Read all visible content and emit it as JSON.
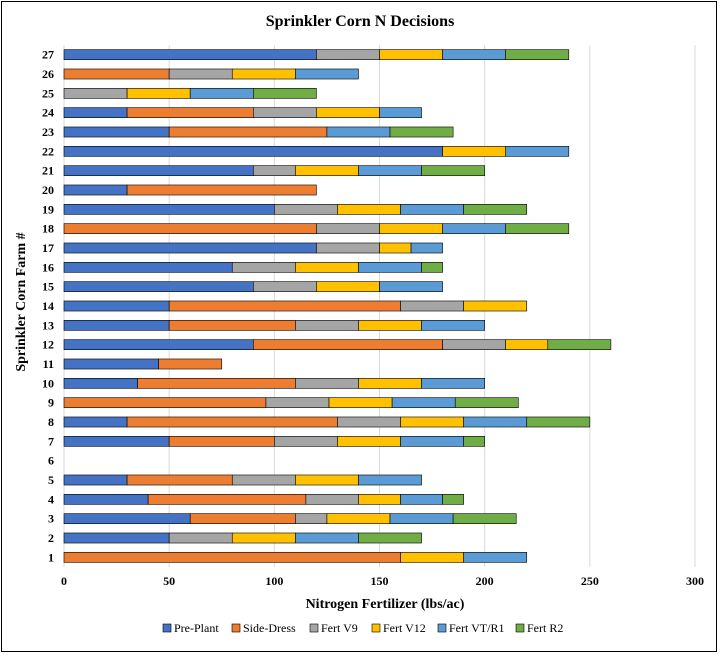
{
  "chart_data": {
    "type": "bar",
    "orientation": "horizontal",
    "stacked": true,
    "title": "Sprinkler Corn N Decisions",
    "xlabel": "Nitrogen Fertilizer (lbs/ac)",
    "ylabel": "Sprinkler Corn Farm #",
    "xlim": [
      0,
      300
    ],
    "xticks": [
      0,
      50,
      100,
      150,
      200,
      250,
      300
    ],
    "grid": "vertical",
    "legend_position": "bottom",
    "categories": [
      "1",
      "2",
      "3",
      "4",
      "5",
      "6",
      "7",
      "8",
      "9",
      "10",
      "11",
      "12",
      "13",
      "14",
      "15",
      "16",
      "17",
      "18",
      "19",
      "20",
      "21",
      "22",
      "23",
      "24",
      "25",
      "26",
      "27"
    ],
    "series": [
      {
        "name": "Pre-Plant",
        "color": "#4472C4",
        "values": [
          0,
          50,
          60,
          40,
          30,
          0,
          50,
          30,
          0,
          35,
          45,
          90,
          50,
          50,
          90,
          80,
          120,
          0,
          100,
          30,
          90,
          180,
          50,
          30,
          0,
          0,
          120
        ]
      },
      {
        "name": "Side-Dress",
        "color": "#ED7D31",
        "values": [
          160,
          0,
          50,
          75,
          50,
          0,
          50,
          100,
          96,
          75,
          30,
          90,
          60,
          110,
          0,
          0,
          0,
          120,
          0,
          90,
          0,
          0,
          75,
          60,
          0,
          50,
          0
        ]
      },
      {
        "name": "Fert V9",
        "color": "#A5A5A5",
        "values": [
          0,
          30,
          15,
          25,
          30,
          0,
          30,
          30,
          30,
          30,
          0,
          30,
          30,
          30,
          30,
          30,
          30,
          30,
          30,
          0,
          20,
          0,
          0,
          30,
          30,
          30,
          30
        ]
      },
      {
        "name": "Fert V12",
        "color": "#FFC000",
        "values": [
          30,
          30,
          30,
          20,
          30,
          0,
          30,
          30,
          30,
          30,
          0,
          20,
          30,
          30,
          30,
          30,
          15,
          30,
          30,
          0,
          30,
          30,
          0,
          30,
          30,
          30,
          30
        ]
      },
      {
        "name": "Fert VT/R1",
        "color": "#5B9BD5",
        "values": [
          30,
          30,
          30,
          20,
          30,
          0,
          30,
          30,
          30,
          30,
          0,
          0,
          30,
          0,
          30,
          30,
          15,
          30,
          30,
          0,
          30,
          30,
          30,
          20,
          30,
          30,
          30
        ]
      },
      {
        "name": "Fert R2",
        "color": "#70AD47",
        "values": [
          0,
          30,
          30,
          10,
          0,
          0,
          10,
          30,
          30,
          0,
          0,
          30,
          0,
          0,
          0,
          10,
          0,
          30,
          30,
          0,
          30,
          0,
          30,
          0,
          30,
          0,
          30
        ]
      }
    ]
  }
}
